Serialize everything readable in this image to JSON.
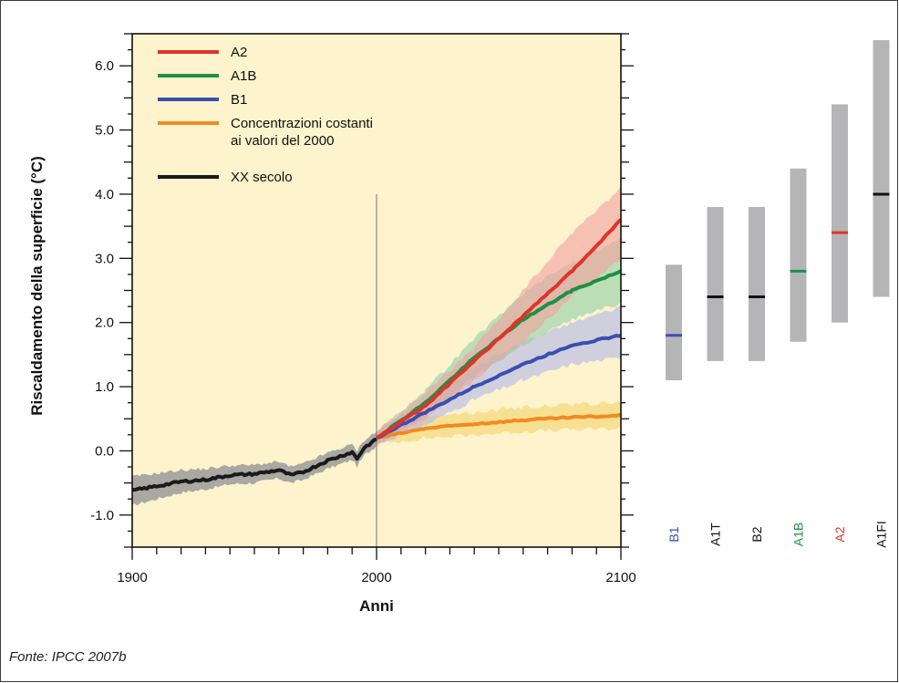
{
  "chart_data": {
    "type": "line",
    "title": "",
    "xlabel": "Anni",
    "ylabel": "Riscaldamento della superficie (°C)",
    "xlim": [
      1900,
      2100
    ],
    "ylim": [
      -1.5,
      6.5
    ],
    "x_ticks": [
      "1900",
      "2000",
      "2100"
    ],
    "y_ticks": [
      "-1.0",
      "0.0",
      "1.0",
      "2.0",
      "3.0",
      "4.0",
      "5.0",
      "6.0"
    ],
    "legend_position": "top-left",
    "reference_line_x": 2000,
    "series": [
      {
        "name": "A2",
        "color": "#e0332b",
        "band_color": "#f2a0a0",
        "x": [
          2000,
          2020,
          2040,
          2060,
          2080,
          2100
        ],
        "values": [
          0.2,
          0.7,
          1.4,
          2.1,
          2.8,
          3.6
        ],
        "lower": [
          0.1,
          0.5,
          1.1,
          1.7,
          2.4,
          3.0
        ],
        "upper": [
          0.3,
          0.9,
          1.6,
          2.5,
          3.4,
          4.1
        ]
      },
      {
        "name": "A1B",
        "color": "#1f8f45",
        "band_color": "#8fd0a8",
        "x": [
          2000,
          2020,
          2040,
          2060,
          2080,
          2100
        ],
        "values": [
          0.2,
          0.75,
          1.45,
          2.05,
          2.5,
          2.8
        ],
        "lower": [
          0.1,
          0.55,
          1.15,
          1.65,
          2.05,
          2.3
        ],
        "upper": [
          0.3,
          0.95,
          1.75,
          2.45,
          2.95,
          3.3
        ]
      },
      {
        "name": "B1",
        "color": "#3a4fb0",
        "band_color": "#b3b8e8",
        "x": [
          2000,
          2020,
          2040,
          2060,
          2080,
          2100
        ],
        "values": [
          0.2,
          0.6,
          1.0,
          1.35,
          1.65,
          1.8
        ],
        "lower": [
          0.1,
          0.4,
          0.8,
          1.1,
          1.35,
          1.45
        ],
        "upper": [
          0.3,
          0.8,
          1.3,
          1.7,
          2.0,
          2.25
        ]
      },
      {
        "name": "Concentrazioni costanti ai valori del 2000",
        "color": "#f08a25",
        "band_color": "#f5d36a",
        "x": [
          2000,
          2020,
          2040,
          2060,
          2080,
          2100
        ],
        "values": [
          0.2,
          0.35,
          0.42,
          0.48,
          0.52,
          0.55
        ],
        "lower": [
          0.1,
          0.2,
          0.25,
          0.3,
          0.33,
          0.35
        ],
        "upper": [
          0.3,
          0.55,
          0.6,
          0.68,
          0.72,
          0.75
        ]
      },
      {
        "name": "XX secolo",
        "color": "#1a1a1a",
        "band_color": "#9a9a9a",
        "x": [
          1900,
          1910,
          1920,
          1930,
          1940,
          1950,
          1960,
          1965,
          1970,
          1980,
          1990,
          1992,
          1995,
          2000
        ],
        "values": [
          -0.62,
          -0.55,
          -0.48,
          -0.45,
          -0.38,
          -0.36,
          -0.3,
          -0.38,
          -0.33,
          -0.15,
          -0.02,
          -0.12,
          0.05,
          0.18
        ],
        "lower": [
          -0.85,
          -0.75,
          -0.65,
          -0.6,
          -0.52,
          -0.5,
          -0.43,
          -0.5,
          -0.45,
          -0.28,
          -0.14,
          -0.24,
          -0.07,
          0.08
        ],
        "upper": [
          -0.4,
          -0.35,
          -0.3,
          -0.28,
          -0.23,
          -0.22,
          -0.17,
          -0.25,
          -0.2,
          -0.03,
          0.1,
          0.0,
          0.17,
          0.3
        ]
      }
    ],
    "legend": [
      {
        "lines": [
          "A2"
        ],
        "color": "#e0332b"
      },
      {
        "lines": [
          "A1B"
        ],
        "color": "#1f8f45"
      },
      {
        "lines": [
          "B1"
        ],
        "color": "#3a4fb0"
      },
      {
        "lines": [
          "Concentrazioni costanti",
          "ai valori del 2000"
        ],
        "color": "#f08a25"
      },
      {
        "lines": [
          "XX secolo"
        ],
        "color": "#1a1a1a"
      }
    ],
    "scenario_ranges": [
      {
        "name": "B1",
        "low": 1.1,
        "high": 2.9,
        "best": 1.8,
        "color": "#3a4fb0"
      },
      {
        "name": "A1T",
        "low": 1.4,
        "high": 3.8,
        "best": 2.4,
        "color": "#111111"
      },
      {
        "name": "B2",
        "low": 1.4,
        "high": 3.8,
        "best": 2.4,
        "color": "#111111"
      },
      {
        "name": "A1B",
        "low": 1.7,
        "high": 4.4,
        "best": 2.8,
        "color": "#1f8f45"
      },
      {
        "name": "A2",
        "low": 2.0,
        "high": 5.4,
        "best": 3.4,
        "color": "#e0332b"
      },
      {
        "name": "A1FI",
        "low": 2.4,
        "high": 6.4,
        "best": 4.0,
        "color": "#111111"
      }
    ],
    "colors": {
      "plot_background": "#fdf3cc",
      "range_bar": "#b5b5b8",
      "reference_line": "#8a8a8a"
    }
  },
  "source_note": "Fonte: IPCC 2007b"
}
